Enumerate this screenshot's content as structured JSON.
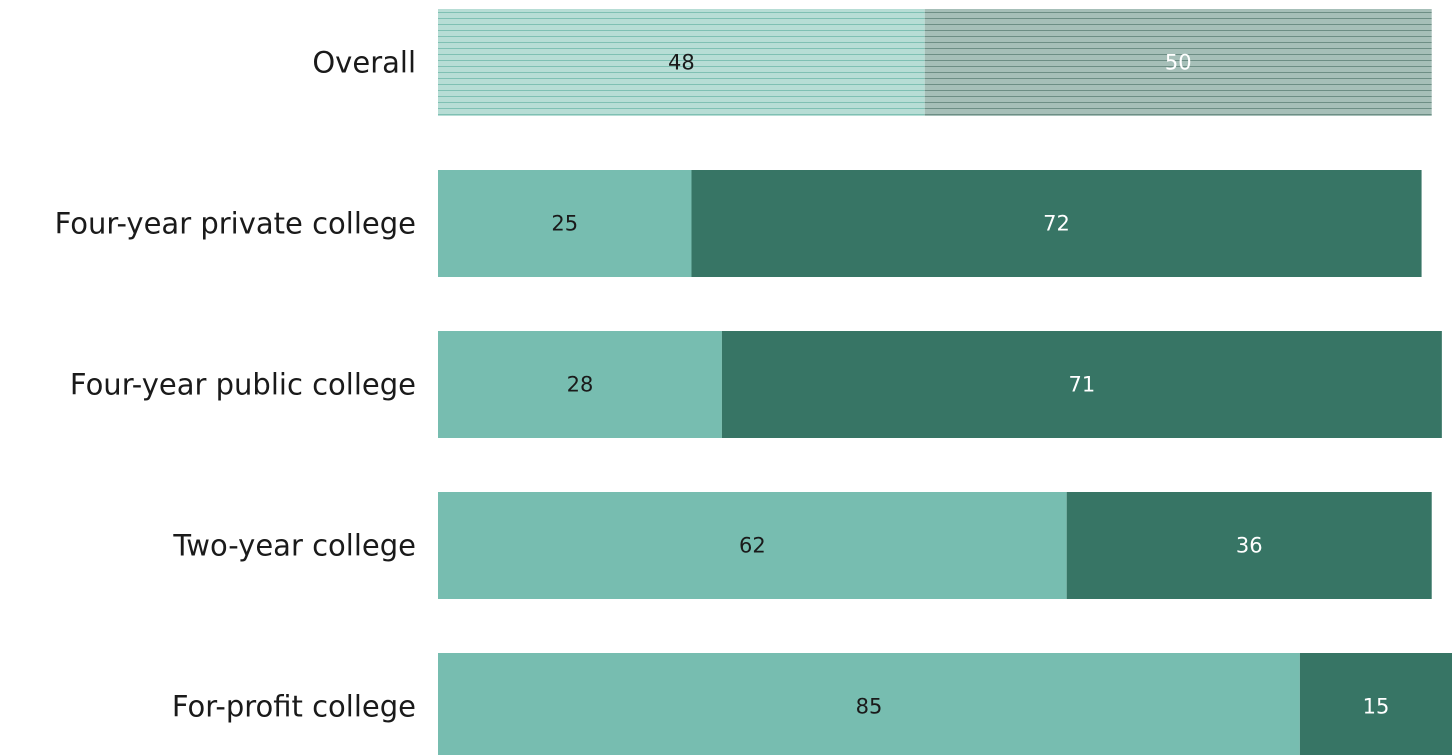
{
  "chart_data": {
    "type": "bar",
    "orientation": "horizontal",
    "stacked": true,
    "categories": [
      "Overall",
      "Four-year private college",
      "Four-year public college",
      "Two-year college",
      "For-profit college"
    ],
    "series": [
      {
        "values": [
          48,
          25,
          28,
          62,
          85
        ],
        "color": "#77bdb0"
      },
      {
        "values": [
          50,
          72,
          71,
          36,
          15
        ],
        "color": "#377565"
      }
    ],
    "highlighted_category": "Overall",
    "highlight_style": "horizontal-line-hatch",
    "label_colors": [
      "#1a1a1a",
      "#ffffff"
    ],
    "xlim": [
      0,
      100
    ],
    "grid": false,
    "legend": "none"
  }
}
